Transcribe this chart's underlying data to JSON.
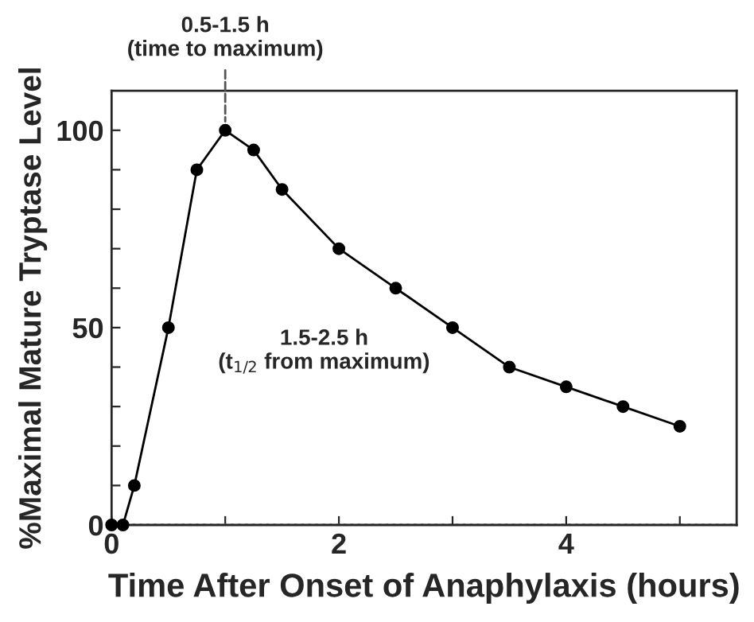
{
  "chart_data": {
    "type": "line",
    "xlabel": "Time After Onset of Anaphylaxis (hours)",
    "ylabel": "%Maximal Mature Tryptase Level",
    "x": [
      0,
      0.1,
      0.2,
      0.5,
      0.75,
      1,
      1.25,
      1.5,
      2,
      2.5,
      3,
      3.5,
      4,
      4.5,
      5
    ],
    "series": [
      {
        "color": "#000000",
        "values": [
          0,
          0,
          10,
          50,
          90,
          100,
          95,
          85,
          70,
          60,
          50,
          40,
          35,
          30,
          25
        ]
      }
    ],
    "marker": "circle",
    "line_style": "solid",
    "xlim": [
      0,
      5.5
    ],
    "ylim": [
      0,
      110
    ],
    "xticks": [
      0,
      {
        "value": 1,
        "label": null
      },
      2,
      {
        "value": 3,
        "label": null
      },
      4,
      {
        "value": 5,
        "label": null
      }
    ],
    "yticks": [
      0,
      {
        "value": 10,
        "label": null
      },
      {
        "value": 20,
        "label": null
      },
      {
        "value": 30,
        "label": null
      },
      {
        "value": 40,
        "label": null
      },
      50,
      {
        "value": 60,
        "label": null
      },
      {
        "value": 70,
        "label": null
      },
      {
        "value": 80,
        "label": null
      },
      {
        "value": 90,
        "label": null
      },
      100
    ],
    "ref_lines": [
      {
        "axis": "y",
        "value": 0,
        "color": "#999999",
        "line_style": "dotted"
      }
    ],
    "annotations": [
      {
        "text": "0.5-1.5 h\n(time to maximum)",
        "x": 1,
        "y": 100
      },
      "1.5-2.5 h\n(t$_{1/2}$ from maximum)"
    ],
    "grid": false,
    "legend": false
  }
}
